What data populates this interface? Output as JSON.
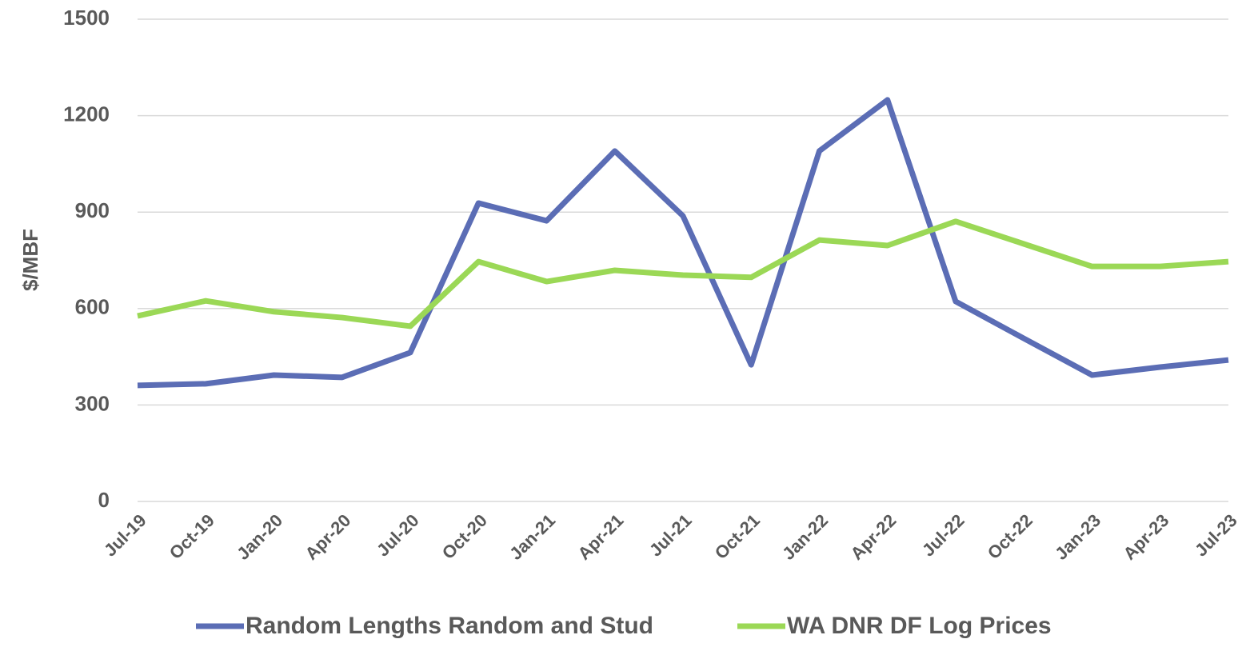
{
  "chart_data": {
    "type": "line",
    "y_label": "$/MBF",
    "categories": [
      "Jul-19",
      "Oct-19",
      "Jan-20",
      "Apr-20",
      "Jul-20",
      "Oct-20",
      "Jan-21",
      "Apr-21",
      "Jul-21",
      "Oct-21",
      "Jan-22",
      "Apr-22",
      "Jul-22",
      "Oct-22",
      "Jan-23",
      "Apr-23",
      "Jul-23"
    ],
    "series": [
      {
        "name": "Random Lengths Random and Stud",
        "color": "#5b6db5",
        "values": [
          361,
          366,
          393,
          386,
          463,
          928,
          873,
          1090,
          888,
          425,
          1090,
          1249,
          622,
          507,
          393,
          418,
          440
        ]
      },
      {
        "name": "WA DNR DF Log Prices",
        "color": "#9bd856",
        "values": [
          577,
          624,
          590,
          572,
          545,
          746,
          684,
          719,
          704,
          697,
          813,
          796,
          871,
          801,
          731,
          731,
          746
        ]
      }
    ],
    "ylim": [
      0,
      1500
    ],
    "yticks": [
      0,
      300,
      600,
      900,
      1200,
      1500
    ],
    "grid": true,
    "legend": "bottom"
  }
}
